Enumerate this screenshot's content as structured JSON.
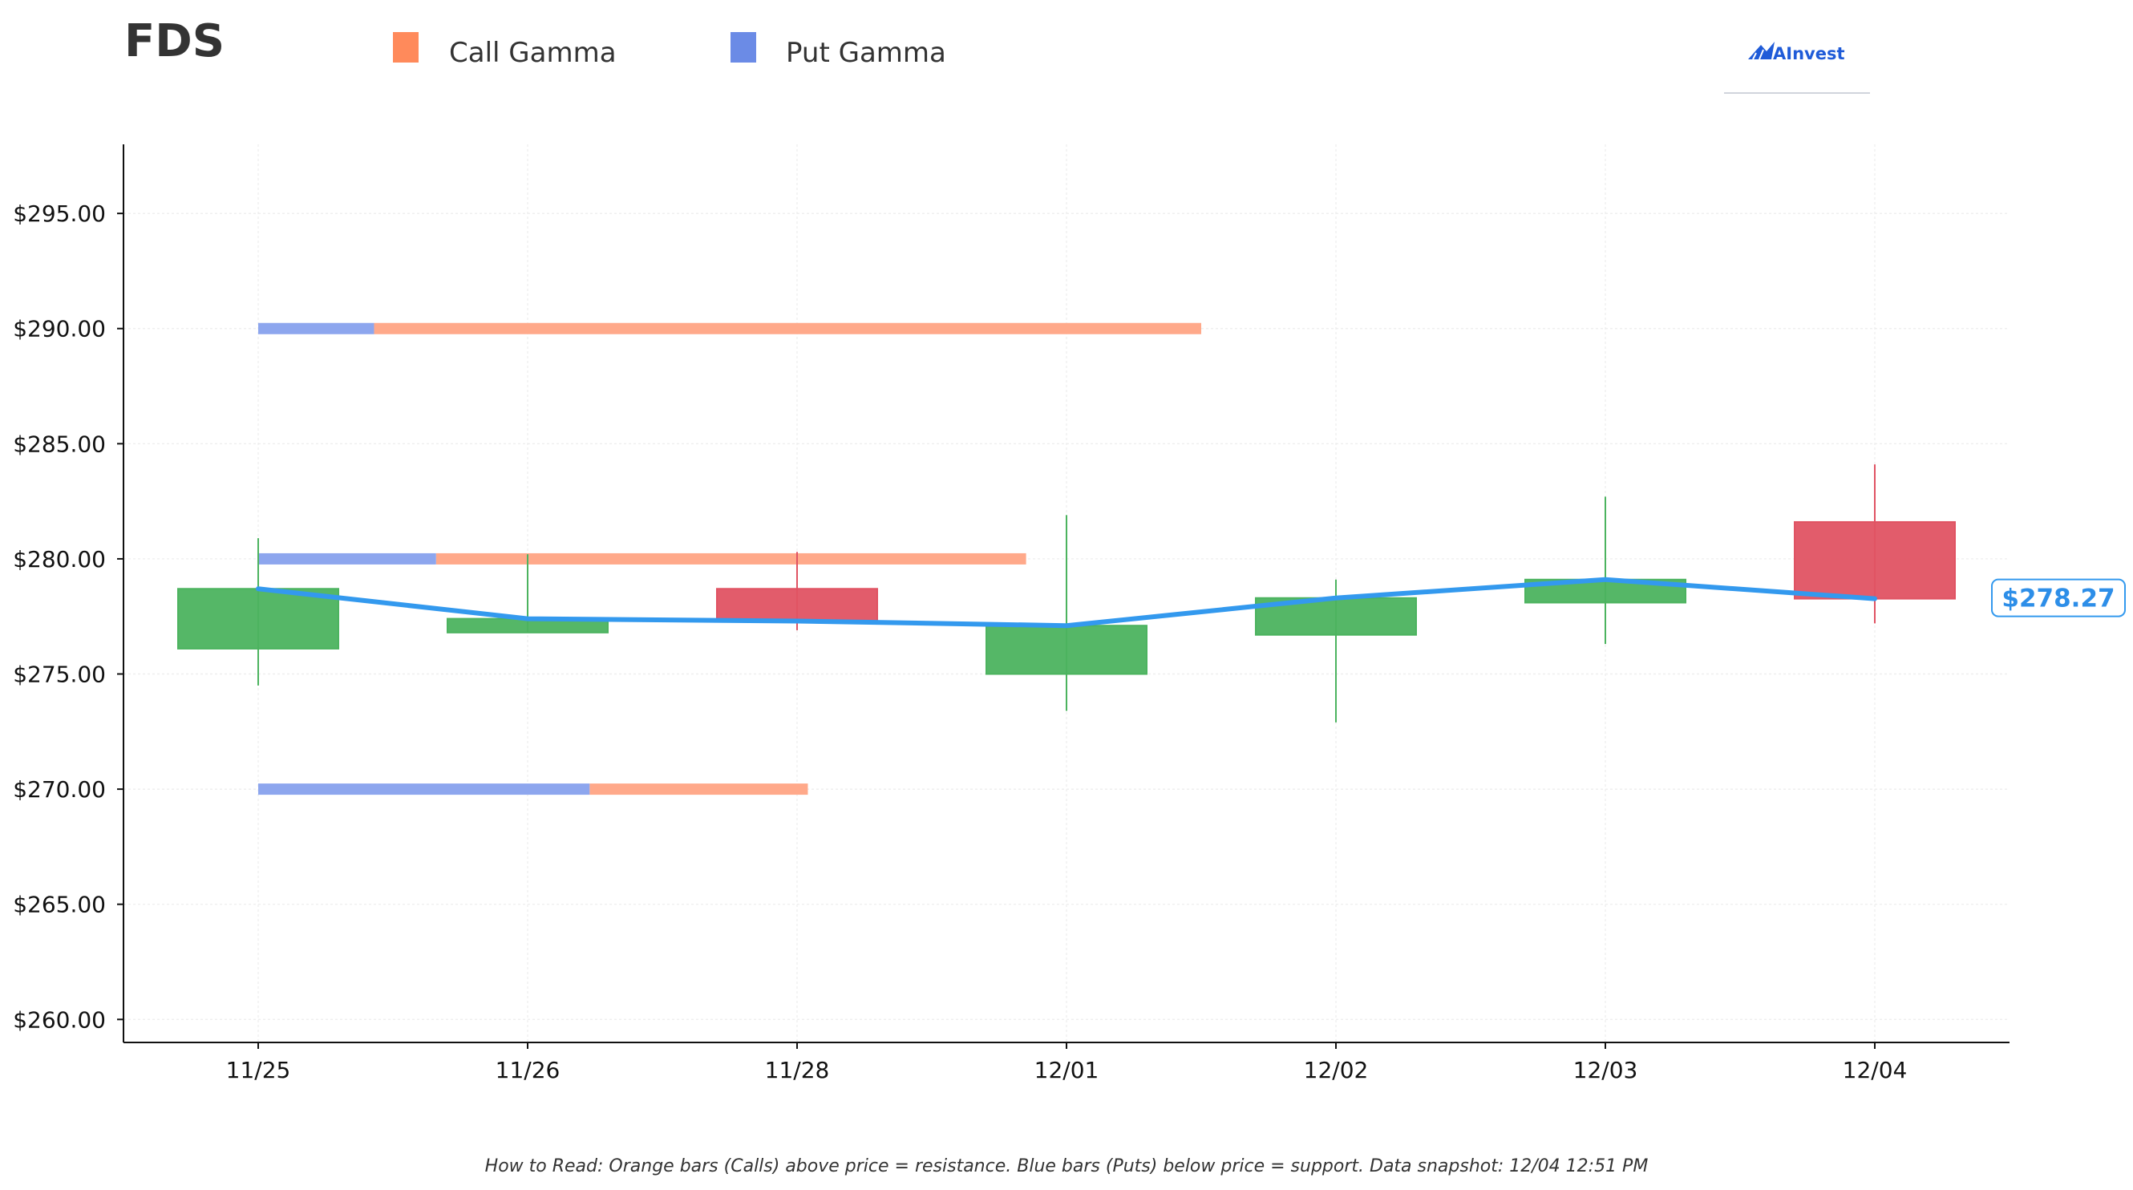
{
  "header": {
    "ticker": "FDS",
    "logo_text": "AInvest"
  },
  "legend": [
    {
      "label": "Call Gamma",
      "color": "#ff8a5b"
    },
    {
      "label": "Put Gamma",
      "color": "#6b8be6"
    }
  ],
  "footnote": "How to Read: Orange bars (Calls) above price = resistance. Blue bars (Puts) below price = support. Data snapshot: 12/04 12:51 PM",
  "colors": {
    "up": "#4cb35f",
    "down": "#e05363",
    "price_line": "#3399ee",
    "call": "#ffa98a",
    "put": "#8da6ee"
  },
  "chart_data": {
    "type": "candlestick",
    "categories": [
      "11/25",
      "11/26",
      "11/28",
      "12/01",
      "12/02",
      "12/03",
      "12/04"
    ],
    "ylim": [
      259,
      298
    ],
    "yticks": [
      260,
      265,
      270,
      275,
      280,
      285,
      290,
      295
    ],
    "ytick_labels": [
      "$260.00",
      "$265.00",
      "$270.00",
      "$275.00",
      "$280.00",
      "$285.00",
      "$290.00",
      "$295.00"
    ],
    "grid": true,
    "candles": [
      {
        "date": "11/25",
        "open": 276.1,
        "high": 280.9,
        "low": 274.5,
        "close": 278.7
      },
      {
        "date": "11/26",
        "open": 276.8,
        "high": 280.2,
        "low": 276.8,
        "close": 277.4
      },
      {
        "date": "11/28",
        "open": 278.7,
        "high": 280.3,
        "low": 276.9,
        "close": 277.3
      },
      {
        "date": "12/01",
        "open": 275.0,
        "high": 281.9,
        "low": 273.4,
        "close": 277.1
      },
      {
        "date": "12/02",
        "open": 276.7,
        "high": 279.1,
        "low": 272.9,
        "close": 278.3
      },
      {
        "date": "12/03",
        "open": 278.1,
        "high": 282.7,
        "low": 276.3,
        "close": 279.1
      },
      {
        "date": "12/04",
        "open": 281.6,
        "high": 284.1,
        "low": 277.2,
        "close": 278.27
      }
    ],
    "price_line": [
      278.7,
      277.4,
      277.3,
      277.1,
      278.3,
      279.1,
      278.27
    ],
    "last_price_label": "$278.27",
    "gamma_levels": [
      {
        "strike": 290,
        "put_extent": 0.43,
        "call_extent": 3.5
      },
      {
        "strike": 280,
        "put_extent": 0.66,
        "call_extent": 2.85
      },
      {
        "strike": 270,
        "put_extent": 1.23,
        "call_extent": 2.04
      }
    ]
  }
}
